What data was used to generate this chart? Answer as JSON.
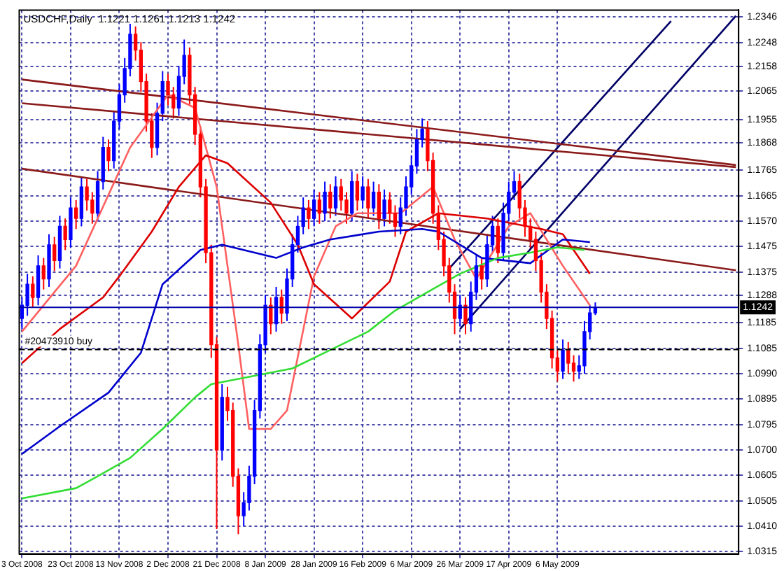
{
  "chart_data": {
    "type": "candlestick",
    "title": "USDCHF,Daily  1.1221 1.1261 1.1213 1.1242",
    "categories": [
      "3 Oct 2008",
      null,
      null,
      null,
      null,
      null,
      null,
      null,
      null,
      "23 Oct 2008",
      null,
      null,
      null,
      null,
      null,
      null,
      null,
      null,
      "13 Nov 2008",
      null,
      null,
      null,
      null,
      null,
      null,
      null,
      null,
      "2 Dec 2008",
      null,
      null,
      null,
      null,
      null,
      null,
      null,
      null,
      "21 Dec 2008",
      null,
      null,
      null,
      null,
      null,
      null,
      null,
      null,
      "8 Jan 2009",
      null,
      null,
      null,
      null,
      null,
      null,
      null,
      null,
      "28 Jan 2009",
      null,
      null,
      null,
      null,
      null,
      null,
      null,
      null,
      "16 Feb 2009",
      null,
      null,
      null,
      null,
      null,
      null,
      null,
      null,
      "6 Mar 2009",
      null,
      null,
      null,
      null,
      null,
      null,
      null,
      null,
      "26 Mar 2009",
      null,
      null,
      null,
      null,
      null,
      null,
      null,
      null,
      "17 Apr 2009",
      null,
      null,
      null,
      null,
      null,
      null,
      null,
      null,
      "6 May 2009",
      null,
      null,
      null,
      null,
      null,
      null,
      null,
      null,
      null,
      null,
      null,
      null,
      null,
      null,
      null,
      null,
      null,
      null,
      null,
      null,
      null,
      null,
      null,
      null,
      null,
      null,
      null,
      null,
      null,
      null,
      null,
      null,
      null
    ],
    "ohlc": [
      [
        1.12,
        1.128,
        1.116,
        1.125
      ],
      [
        1.125,
        1.137,
        1.121,
        1.133
      ],
      [
        1.133,
        1.136,
        1.124,
        1.128
      ],
      [
        1.128,
        1.144,
        1.125,
        1.14
      ],
      [
        1.14,
        1.143,
        1.131,
        1.135
      ],
      [
        1.135,
        1.152,
        1.132,
        1.148
      ],
      [
        1.148,
        1.151,
        1.138,
        1.142
      ],
      [
        1.142,
        1.159,
        1.139,
        1.155
      ],
      [
        1.155,
        1.158,
        1.146,
        1.15
      ],
      [
        1.15,
        1.166,
        1.147,
        1.162
      ],
      [
        1.162,
        1.165,
        1.154,
        1.158
      ],
      [
        1.158,
        1.174,
        1.155,
        1.17
      ],
      [
        1.17,
        1.173,
        1.161,
        1.165
      ],
      [
        1.165,
        1.168,
        1.156,
        1.16
      ],
      [
        1.16,
        1.176,
        1.157,
        1.172
      ],
      [
        1.172,
        1.189,
        1.169,
        1.185
      ],
      [
        1.185,
        1.188,
        1.176,
        1.18
      ],
      [
        1.18,
        1.199,
        1.177,
        1.195
      ],
      [
        1.195,
        1.209,
        1.192,
        1.205
      ],
      [
        1.205,
        1.219,
        1.202,
        1.215
      ],
      [
        1.215,
        1.232,
        1.212,
        1.228
      ],
      [
        1.228,
        1.231,
        1.218,
        1.222
      ],
      [
        1.222,
        1.225,
        1.206,
        1.21
      ],
      [
        1.21,
        1.213,
        1.191,
        1.195
      ],
      [
        1.195,
        1.198,
        1.181,
        1.185
      ],
      [
        1.185,
        1.202,
        1.182,
        1.198
      ],
      [
        1.198,
        1.214,
        1.195,
        1.21
      ],
      [
        1.21,
        1.213,
        1.201,
        1.205
      ],
      [
        1.205,
        1.208,
        1.196,
        1.2
      ],
      [
        1.2,
        1.216,
        1.197,
        1.212
      ],
      [
        1.212,
        1.226,
        1.209,
        1.22
      ],
      [
        1.22,
        1.223,
        1.201,
        1.205
      ],
      [
        1.205,
        1.208,
        1.186,
        1.19
      ],
      [
        1.19,
        1.193,
        1.166,
        1.17
      ],
      [
        1.17,
        1.173,
        1.141,
        1.145
      ],
      [
        1.145,
        1.148,
        1.105,
        1.11
      ],
      [
        1.11,
        1.113,
        1.04,
        1.07
      ],
      [
        1.07,
        1.095,
        1.066,
        1.09
      ],
      [
        1.09,
        1.094,
        1.081,
        1.085
      ],
      [
        1.085,
        1.088,
        1.056,
        1.06
      ],
      [
        1.06,
        1.063,
        1.038,
        1.045
      ],
      [
        1.045,
        1.054,
        1.041,
        1.05
      ],
      [
        1.05,
        1.064,
        1.047,
        1.06
      ],
      [
        1.06,
        1.089,
        1.057,
        1.085
      ],
      [
        1.085,
        1.114,
        1.082,
        1.11
      ],
      [
        1.11,
        1.129,
        1.107,
        1.125
      ],
      [
        1.125,
        1.128,
        1.114,
        1.118
      ],
      [
        1.118,
        1.132,
        1.115,
        1.128
      ],
      [
        1.128,
        1.131,
        1.118,
        1.122
      ],
      [
        1.122,
        1.139,
        1.119,
        1.135
      ],
      [
        1.135,
        1.152,
        1.132,
        1.148
      ],
      [
        1.148,
        1.159,
        1.145,
        1.155
      ],
      [
        1.155,
        1.166,
        1.152,
        1.162
      ],
      [
        1.162,
        1.165,
        1.154,
        1.158
      ],
      [
        1.158,
        1.169,
        1.155,
        1.165
      ],
      [
        1.165,
        1.168,
        1.156,
        1.16
      ],
      [
        1.16,
        1.172,
        1.157,
        1.168
      ],
      [
        1.168,
        1.171,
        1.158,
        1.162
      ],
      [
        1.162,
        1.174,
        1.159,
        1.17
      ],
      [
        1.17,
        1.173,
        1.161,
        1.165
      ],
      [
        1.165,
        1.168,
        1.156,
        1.16
      ],
      [
        1.16,
        1.176,
        1.157,
        1.172
      ],
      [
        1.172,
        1.175,
        1.161,
        1.165
      ],
      [
        1.165,
        1.174,
        1.162,
        1.17
      ],
      [
        1.17,
        1.173,
        1.158,
        1.162
      ],
      [
        1.162,
        1.172,
        1.159,
        1.168
      ],
      [
        1.168,
        1.171,
        1.154,
        1.158
      ],
      [
        1.158,
        1.169,
        1.155,
        1.165
      ],
      [
        1.165,
        1.168,
        1.156,
        1.16
      ],
      [
        1.16,
        1.163,
        1.151,
        1.155
      ],
      [
        1.155,
        1.166,
        1.152,
        1.162
      ],
      [
        1.162,
        1.174,
        1.159,
        1.17
      ],
      [
        1.17,
        1.182,
        1.167,
        1.178
      ],
      [
        1.178,
        1.192,
        1.175,
        1.188
      ],
      [
        1.188,
        1.196,
        1.185,
        1.192
      ],
      [
        1.192,
        1.195,
        1.176,
        1.18
      ],
      [
        1.18,
        1.183,
        1.156,
        1.16
      ],
      [
        1.16,
        1.163,
        1.146,
        1.15
      ],
      [
        1.15,
        1.153,
        1.136,
        1.14
      ],
      [
        1.14,
        1.143,
        1.126,
        1.13
      ],
      [
        1.13,
        1.133,
        1.114,
        1.12
      ],
      [
        1.12,
        1.129,
        1.117,
        1.125
      ],
      [
        1.125,
        1.128,
        1.114,
        1.118
      ],
      [
        1.118,
        1.134,
        1.115,
        1.13
      ],
      [
        1.13,
        1.144,
        1.127,
        1.14
      ],
      [
        1.14,
        1.143,
        1.131,
        1.135
      ],
      [
        1.135,
        1.152,
        1.132,
        1.148
      ],
      [
        1.148,
        1.159,
        1.145,
        1.155
      ],
      [
        1.155,
        1.158,
        1.141,
        1.145
      ],
      [
        1.145,
        1.164,
        1.142,
        1.16
      ],
      [
        1.16,
        1.172,
        1.157,
        1.168
      ],
      [
        1.168,
        1.176,
        1.165,
        1.172
      ],
      [
        1.172,
        1.175,
        1.158,
        1.162
      ],
      [
        1.162,
        1.165,
        1.151,
        1.155
      ],
      [
        1.155,
        1.158,
        1.146,
        1.15
      ],
      [
        1.15,
        1.153,
        1.138,
        1.142
      ],
      [
        1.142,
        1.145,
        1.126,
        1.13
      ],
      [
        1.13,
        1.133,
        1.116,
        1.12
      ],
      [
        1.12,
        1.123,
        1.101,
        1.105
      ],
      [
        1.105,
        1.108,
        1.096,
        1.1
      ],
      [
        1.1,
        1.112,
        1.097,
        1.108
      ],
      [
        1.108,
        1.111,
        1.099,
        1.103
      ],
      [
        1.103,
        1.106,
        1.096,
        1.1
      ],
      [
        1.1,
        1.106,
        1.097,
        1.102
      ],
      [
        1.102,
        1.119,
        1.099,
        1.115
      ],
      [
        1.115,
        1.125,
        1.112,
        1.1221
      ],
      [
        1.1221,
        1.1261,
        1.1213,
        1.1242
      ],
      null,
      null,
      null,
      null,
      null,
      null,
      null,
      null,
      null,
      null,
      null,
      null,
      null,
      null,
      null,
      null,
      null,
      null,
      null,
      null,
      null,
      null,
      null,
      null,
      null,
      null
    ],
    "colors": [
      "#0000ff",
      "#0000ff",
      "#ff0000",
      "#0000ff",
      "#ff0000",
      "#0000ff",
      "#ff0000",
      "#0000ff",
      "#ff0000",
      "#0000ff",
      "#ff0000",
      "#0000ff",
      "#ff0000",
      "#ff0000",
      "#0000ff",
      "#0000ff",
      "#ff0000",
      "#0000ff",
      "#0000ff",
      "#0000ff",
      "#0000ff",
      "#ff0000",
      "#ff0000",
      "#ff0000",
      "#ff0000",
      "#0000ff",
      "#0000ff",
      "#ff0000",
      "#ff0000",
      "#0000ff",
      "#0000ff",
      "#ff0000",
      "#ff0000",
      "#ff0000",
      "#ff0000",
      "#ff0000",
      "#ff0000",
      "#0000ff",
      "#ff0000",
      "#ff0000",
      "#ff0000",
      "#0000ff",
      "#0000ff",
      "#0000ff",
      "#0000ff",
      "#0000ff",
      "#ff0000",
      "#0000ff",
      "#ff0000",
      "#0000ff",
      "#0000ff",
      "#0000ff",
      "#0000ff",
      "#ff0000",
      "#0000ff",
      "#ff0000",
      "#0000ff",
      "#ff0000",
      "#0000ff",
      "#ff0000",
      "#ff0000",
      "#0000ff",
      "#ff0000",
      "#0000ff",
      "#ff0000",
      "#0000ff",
      "#ff0000",
      "#0000ff",
      "#ff0000",
      "#ff0000",
      "#0000ff",
      "#0000ff",
      "#0000ff",
      "#0000ff",
      "#0000ff",
      "#ff0000",
      "#ff0000",
      "#ff0000",
      "#ff0000",
      "#ff0000",
      "#ff0000",
      "#0000ff",
      "#ff0000",
      "#0000ff",
      "#0000ff",
      "#ff0000",
      "#0000ff",
      "#0000ff",
      "#ff0000",
      "#0000ff",
      "#0000ff",
      "#0000ff",
      "#ff0000",
      "#ff0000",
      "#ff0000",
      "#ff0000",
      "#ff0000",
      "#ff0000",
      "#ff0000",
      "#ff0000",
      "#0000ff",
      "#ff0000",
      "#ff0000",
      "#0000ff",
      "#0000ff",
      "#0000ff",
      "#0000ff",
      null,
      null,
      null,
      null,
      null,
      null,
      null,
      null,
      null,
      null,
      null,
      null,
      null,
      null,
      null,
      null,
      null,
      null,
      null,
      null,
      null,
      null,
      null,
      null,
      null,
      null
    ],
    "ylim": [
      1.0305,
      1.2372
    ],
    "yticks": [
      1.2346,
      1.2248,
      1.2158,
      1.2065,
      1.1955,
      1.1868,
      1.1765,
      1.1665,
      {
        "value": 1.157,
        "label": "1.1570"
      },
      1.1475,
      1.1375,
      1.1288,
      1.1185,
      1.1085,
      {
        "value": 1.099,
        "label": "1.0990"
      },
      1.0895,
      1.0795,
      {
        "value": 1.07,
        "label": "1.0700"
      },
      1.0605,
      1.0505,
      {
        "value": 1.041,
        "label": "1.0410"
      },
      1.0315
    ],
    "grid": true,
    "series": [
      {
        "type": "line",
        "color": "#33dd33",
        "values": [
          1.0516,
          null,
          null,
          null,
          null,
          null,
          null,
          null,
          null,
          null,
          1.0555,
          null,
          null,
          null,
          1.06,
          null,
          null,
          null,
          null,
          null,
          1.067,
          null,
          null,
          null,
          null,
          null,
          1.078,
          null,
          null,
          null,
          null,
          null,
          1.09,
          null,
          null,
          1.095,
          null,
          null,
          null,
          null,
          1.097,
          null,
          null,
          null,
          null,
          1.099,
          null,
          null,
          null,
          null,
          1.101,
          null,
          null,
          null,
          null,
          null,
          null,
          1.108,
          null,
          null,
          null,
          null,
          null,
          null,
          1.115,
          null,
          null,
          null,
          null,
          1.123,
          null,
          null,
          null,
          null,
          null,
          1.13,
          null,
          null,
          null,
          null,
          null,
          1.137,
          null,
          null,
          null,
          null,
          null,
          null,
          1.143,
          null,
          null,
          null,
          null,
          null,
          1.145,
          null,
          null,
          null,
          null,
          1.147,
          null,
          null,
          null,
          null,
          1.146,
          null,
          null,
          null,
          null,
          null,
          null,
          null,
          null,
          null,
          null,
          null,
          null,
          null,
          null,
          null,
          null,
          null,
          null,
          null,
          null,
          null,
          null,
          null,
          null,
          null,
          null,
          null,
          null
        ]
      },
      {
        "type": "line",
        "color": "#0000cc",
        "values": [
          1.0685,
          null,
          null,
          null,
          null,
          null,
          null,
          1.079,
          null,
          null,
          null,
          null,
          null,
          null,
          null,
          null,
          1.0918,
          null,
          null,
          null,
          null,
          null,
          1.107,
          null,
          null,
          null,
          1.133,
          null,
          null,
          null,
          null,
          null,
          null,
          1.146,
          null,
          null,
          null,
          1.148,
          null,
          null,
          null,
          null,
          null,
          null,
          null,
          null,
          null,
          1.143,
          null,
          null,
          null,
          null,
          1.147,
          null,
          null,
          null,
          null,
          1.15,
          null,
          null,
          null,
          null,
          null,
          null,
          null,
          null,
          1.153,
          null,
          null,
          null,
          null,
          null,
          null,
          null,
          1.154,
          null,
          null,
          1.153,
          null,
          null,
          null,
          null,
          null,
          null,
          null,
          1.143,
          null,
          null,
          null,
          null,
          null,
          null,
          null,
          null,
          1.141,
          null,
          null,
          null,
          null,
          null,
          1.15,
          null,
          null,
          null,
          null,
          1.149,
          null,
          null,
          null,
          null,
          null,
          null,
          null,
          null,
          null,
          null,
          null,
          null,
          null,
          null,
          null,
          null,
          null,
          null,
          null,
          null,
          null,
          null,
          null,
          null,
          null,
          null,
          null
        ]
      },
      {
        "type": "line",
        "color": "#dd0000",
        "values": [
          1.103,
          null,
          null,
          null,
          null,
          null,
          null,
          1.116,
          null,
          null,
          null,
          null,
          null,
          null,
          null,
          1.128,
          null,
          null,
          1.136,
          null,
          null,
          null,
          null,
          null,
          1.153,
          null,
          null,
          null,
          null,
          1.17,
          null,
          null,
          null,
          null,
          1.182,
          null,
          null,
          null,
          1.179,
          null,
          null,
          null,
          null,
          null,
          null,
          null,
          1.164,
          null,
          null,
          null,
          null,
          1.148,
          null,
          null,
          1.133,
          null,
          null,
          null,
          null,
          null,
          null,
          1.12,
          null,
          null,
          null,
          null,
          null,
          null,
          1.134,
          null,
          null,
          1.153,
          null,
          null,
          null,
          null,
          null,
          1.16,
          null,
          null,
          null,
          null,
          null,
          null,
          null,
          null,
          1.158,
          null,
          null,
          null,
          null,
          null,
          null,
          null,
          null,
          null,
          1.154,
          null,
          null,
          null,
          1.152,
          null,
          null,
          null,
          null,
          1.137,
          null,
          null,
          null,
          null,
          null,
          null,
          null,
          null,
          null,
          null,
          null,
          null,
          null,
          null,
          null,
          null,
          null,
          null,
          null,
          null,
          null,
          null,
          null,
          null,
          null,
          null,
          null
        ]
      },
      {
        "type": "line",
        "color": "#ff6060",
        "values": [
          1.115,
          null,
          null,
          null,
          null,
          null,
          null,
          null,
          null,
          null,
          1.14,
          null,
          null,
          null,
          null,
          null,
          null,
          null,
          null,
          null,
          1.185,
          null,
          null,
          null,
          null,
          null,
          null,
          1.205,
          null,
          null,
          null,
          null,
          1.2,
          null,
          null,
          null,
          1.17,
          null,
          null,
          null,
          1.11,
          null,
          1.078,
          null,
          null,
          null,
          1.078,
          null,
          null,
          1.085,
          null,
          null,
          null,
          null,
          1.136,
          null,
          null,
          null,
          1.155,
          null,
          null,
          null,
          1.16,
          null,
          null,
          null,
          null,
          null,
          null,
          null,
          1.16,
          null,
          null,
          null,
          null,
          null,
          1.17,
          null,
          null,
          null,
          1.15,
          null,
          null,
          null,
          1.135,
          null,
          null,
          null,
          null,
          null,
          1.155,
          null,
          null,
          null,
          1.16,
          null,
          null,
          null,
          null,
          null,
          1.14,
          null,
          null,
          null,
          null,
          1.125,
          null,
          null,
          null,
          null,
          null,
          null,
          null,
          null,
          null,
          null,
          null,
          null,
          null,
          null,
          null,
          null,
          null,
          null,
          null,
          null,
          null,
          null,
          null,
          null,
          null,
          null,
          null
        ]
      },
      {
        "type": "line",
        "color": "#8b1a1a",
        "values": [
          1.2108,
          null,
          null,
          null,
          null,
          null,
          null,
          null,
          null,
          null,
          null,
          null,
          null,
          null,
          null,
          null,
          null,
          null,
          null,
          null,
          null,
          null,
          null,
          null,
          null,
          null,
          null,
          null,
          null,
          null,
          null,
          null,
          null,
          null,
          null,
          null,
          null,
          null,
          null,
          null,
          null,
          null,
          null,
          null,
          null,
          null,
          null,
          null,
          null,
          null,
          null,
          null,
          null,
          null,
          null,
          null,
          null,
          null,
          null,
          null,
          null,
          null,
          null,
          null,
          null,
          null,
          null,
          null,
          null,
          null,
          null,
          null,
          null,
          null,
          null,
          null,
          null,
          null,
          null,
          null,
          null,
          null,
          null,
          null,
          null,
          null,
          null,
          null,
          null,
          null,
          null,
          null,
          null,
          null,
          null,
          null,
          null,
          null,
          null,
          null,
          null,
          null,
          null,
          null,
          null,
          null,
          null,
          null,
          null,
          null,
          null,
          null,
          null,
          null,
          null,
          null,
          null,
          null,
          null,
          null,
          null,
          null,
          null,
          null,
          null,
          null,
          null,
          null,
          null,
          null,
          null,
          null,
          1.1783
        ]
      },
      {
        "type": "line",
        "color": "#8b1a1a",
        "values": [
          1.2018,
          null,
          null,
          null,
          null,
          null,
          null,
          null,
          null,
          null,
          null,
          null,
          null,
          null,
          null,
          null,
          null,
          null,
          null,
          null,
          null,
          null,
          null,
          null,
          null,
          null,
          null,
          null,
          null,
          null,
          null,
          null,
          null,
          null,
          null,
          null,
          null,
          null,
          null,
          null,
          null,
          null,
          null,
          null,
          null,
          null,
          null,
          null,
          null,
          null,
          null,
          null,
          null,
          null,
          null,
          null,
          null,
          null,
          null,
          null,
          null,
          null,
          null,
          null,
          null,
          null,
          null,
          null,
          null,
          null,
          null,
          null,
          null,
          null,
          null,
          null,
          null,
          null,
          null,
          null,
          null,
          null,
          null,
          null,
          null,
          null,
          null,
          null,
          null,
          null,
          null,
          null,
          null,
          null,
          null,
          null,
          null,
          null,
          null,
          null,
          null,
          null,
          null,
          null,
          null,
          null,
          null,
          null,
          null,
          null,
          null,
          null,
          null,
          null,
          null,
          null,
          null,
          null,
          null,
          null,
          null,
          null,
          null,
          null,
          null,
          null,
          null,
          null,
          null,
          null,
          null,
          null,
          1.1775
        ]
      },
      {
        "type": "line",
        "color": "#8b1a1a",
        "values": [
          1.1769,
          null,
          null,
          null,
          null,
          null,
          null,
          null,
          null,
          null,
          null,
          null,
          null,
          null,
          null,
          null,
          null,
          null,
          null,
          null,
          null,
          null,
          null,
          null,
          null,
          null,
          null,
          null,
          null,
          null,
          null,
          null,
          null,
          null,
          null,
          null,
          null,
          null,
          null,
          null,
          null,
          null,
          null,
          null,
          null,
          null,
          null,
          null,
          null,
          null,
          null,
          null,
          null,
          null,
          null,
          null,
          null,
          null,
          null,
          null,
          null,
          null,
          null,
          null,
          null,
          null,
          null,
          null,
          null,
          null,
          null,
          null,
          null,
          null,
          null,
          null,
          null,
          null,
          null,
          null,
          null,
          null,
          null,
          null,
          null,
          null,
          null,
          null,
          null,
          null,
          null,
          null,
          null,
          null,
          null,
          null,
          null,
          null,
          null,
          null,
          null,
          null,
          null,
          null,
          null,
          null,
          null,
          null,
          null,
          null,
          null,
          null,
          null,
          null,
          null,
          null,
          null,
          null,
          null,
          null,
          null,
          null,
          null,
          null,
          null,
          null,
          null,
          null,
          null,
          null,
          null,
          null,
          1.1383
        ]
      },
      {
        "type": "line",
        "color": "#000066",
        "values": [
          null,
          null,
          null,
          null,
          null,
          null,
          null,
          null,
          null,
          null,
          null,
          null,
          null,
          null,
          null,
          null,
          null,
          null,
          null,
          null,
          null,
          null,
          null,
          null,
          null,
          null,
          null,
          null,
          null,
          null,
          null,
          null,
          null,
          null,
          null,
          null,
          null,
          null,
          null,
          null,
          null,
          null,
          null,
          null,
          null,
          null,
          null,
          null,
          null,
          null,
          null,
          null,
          null,
          null,
          null,
          null,
          null,
          null,
          null,
          null,
          null,
          null,
          null,
          null,
          null,
          null,
          null,
          null,
          null,
          null,
          null,
          null,
          null,
          null,
          null,
          null,
          null,
          null,
          null,
          1.139,
          null,
          null,
          null,
          null,
          null,
          null,
          null,
          null,
          null,
          null,
          null,
          null,
          null,
          null,
          null,
          null,
          null,
          null,
          null,
          null,
          null,
          null,
          null,
          null,
          null,
          null,
          null,
          null,
          null,
          null,
          null,
          null,
          null,
          null,
          null,
          null,
          null,
          null,
          null,
          null,
          1.233,
          null,
          null,
          null,
          null,
          null,
          null,
          null,
          null,
          null,
          null,
          null,
          null
        ]
      },
      {
        "type": "line",
        "color": "#000066",
        "values": [
          null,
          null,
          null,
          null,
          null,
          null,
          null,
          null,
          null,
          null,
          null,
          null,
          null,
          null,
          null,
          null,
          null,
          null,
          null,
          null,
          null,
          null,
          null,
          null,
          null,
          null,
          null,
          null,
          null,
          null,
          null,
          null,
          null,
          null,
          null,
          null,
          null,
          null,
          null,
          null,
          null,
          null,
          null,
          null,
          null,
          null,
          null,
          null,
          null,
          null,
          null,
          null,
          null,
          null,
          null,
          null,
          null,
          null,
          null,
          null,
          null,
          null,
          null,
          null,
          null,
          null,
          null,
          null,
          null,
          null,
          null,
          null,
          null,
          null,
          null,
          null,
          null,
          null,
          null,
          null,
          null,
          1.116,
          null,
          null,
          null,
          null,
          null,
          null,
          null,
          null,
          null,
          null,
          null,
          null,
          null,
          null,
          null,
          null,
          null,
          null,
          null,
          null,
          null,
          null,
          null,
          null,
          null,
          null,
          null,
          null,
          null,
          null,
          null,
          null,
          null,
          null,
          null,
          null,
          null,
          null,
          null,
          null,
          null,
          null,
          null,
          null,
          null,
          null,
          null,
          null,
          null,
          null,
          1.235
        ]
      }
    ],
    "ref_lines": [
      {
        "axis": "y",
        "value": 1.1242,
        "label": "1.1242",
        "color": "#0000aa"
      },
      {
        "axis": "y",
        "value": 1.1082,
        "label": "#20473910 buy",
        "color": "#000000",
        "line_style": "dashed"
      }
    ]
  }
}
